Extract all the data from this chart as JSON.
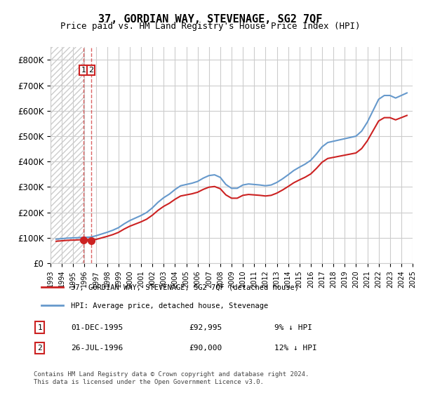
{
  "title": "37, GORDIAN WAY, STEVENAGE, SG2 7QF",
  "subtitle": "Price paid vs. HM Land Registry's House Price Index (HPI)",
  "ylabel_ticks": [
    "£0",
    "£100K",
    "£200K",
    "£300K",
    "£400K",
    "£500K",
    "£600K",
    "£700K",
    "£800K"
  ],
  "ytick_values": [
    0,
    100000,
    200000,
    300000,
    400000,
    500000,
    600000,
    700000,
    800000
  ],
  "ylim": [
    0,
    850000
  ],
  "hpi_color": "#6699cc",
  "price_color": "#cc2222",
  "sale1_date": 1995.92,
  "sale1_price": 92995,
  "sale2_date": 1996.57,
  "sale2_price": 90000,
  "legend1": "37, GORDIAN WAY, STEVENAGE, SG2 7QF (detached house)",
  "legend2": "HPI: Average price, detached house, Stevenage",
  "table_row1": [
    "1",
    "01-DEC-1995",
    "£92,995",
    "9% ↓ HPI"
  ],
  "table_row2": [
    "2",
    "26-JUL-1996",
    "£90,000",
    "12% ↓ HPI"
  ],
  "footnote": "Contains HM Land Registry data © Crown copyright and database right 2024.\nThis data is licensed under the Open Government Licence v3.0.",
  "xmin": 1993,
  "xmax": 2025,
  "hatch_end": 1996.0,
  "background_color": "#ffffff",
  "grid_color": "#cccccc",
  "hatch_color": "#cccccc"
}
